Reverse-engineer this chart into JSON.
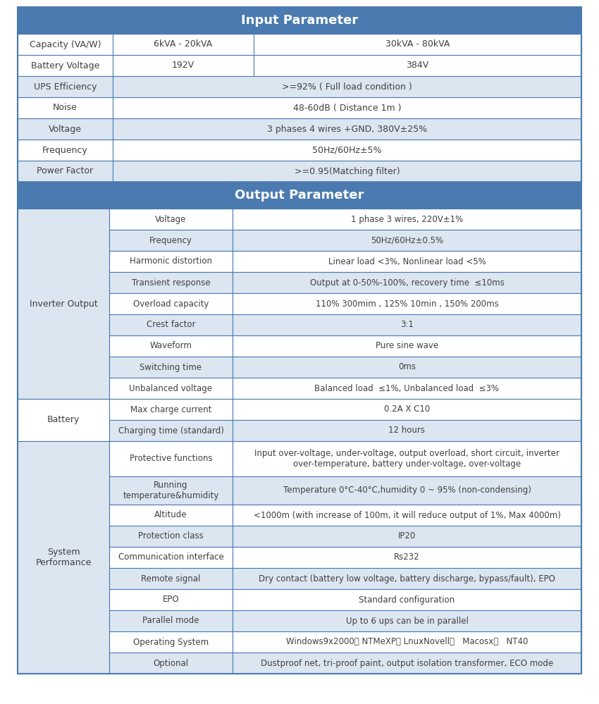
{
  "header_bg": "#4a7aaf",
  "header_text_color": "#ffffff",
  "row_bg_light": "#dce6f1",
  "row_bg_white": "#ffffff",
  "cell_text_color": "#404040",
  "border_color": "#4a7aaf",
  "input_header": "Input Parameter",
  "output_header": "Output Parameter",
  "input_rows": [
    {
      "col1": "Capacity (VA/W)",
      "col2": "6kVA - 20kVA",
      "col3": "30kVA - 80kVA",
      "split": true
    },
    {
      "col1": "Battery Voltage",
      "col2": "192V",
      "col3": "384V",
      "split": true
    },
    {
      "col1": "UPS Efficiency",
      "col2": ">=92% ( Full load condition )",
      "split": false
    },
    {
      "col1": "Noise",
      "col2": "48-60dB ( Distance 1m )",
      "split": false
    },
    {
      "col1": "Voltage",
      "col2": "3 phases 4 wires +GND, 380V±25%",
      "split": false
    },
    {
      "col1": "Frequency",
      "col2": "50Hz/60Hz±5%",
      "split": false
    },
    {
      "col1": "Power Factor",
      "col2": ">=0.95(Matching filter)",
      "split": false
    }
  ],
  "output_sections": [
    {
      "section": "Inverter Output",
      "rows": [
        {
          "col1": "Voltage",
          "col2": "1 phase 3 wires, 220V±1%"
        },
        {
          "col1": "Frequency",
          "col2": "50Hz/60Hz±0.5%"
        },
        {
          "col1": "Harmonic distortion",
          "col2": "Linear load <3%, Nonlinear load <5%"
        },
        {
          "col1": "Transient response",
          "col2": "Output at 0-50%-100%, recovery time  ≤10ms"
        },
        {
          "col1": "Overload capacity",
          "col2": "110% 300mim , 125% 10min , 150% 200ms"
        },
        {
          "col1": "Crest factor",
          "col2": "3:1"
        },
        {
          "col1": "Waveform",
          "col2": "Pure sine wave"
        },
        {
          "col1": "Switching time",
          "col2": "0ms"
        },
        {
          "col1": "Unbalanced voltage",
          "col2": "Balanced load  ≤1%, Unbalanced load  ≤3%"
        }
      ]
    },
    {
      "section": "Battery",
      "rows": [
        {
          "col1": "Max charge current",
          "col2": "0.2A X C10"
        },
        {
          "col1": "Charging time (standard)",
          "col2": "12 hours"
        }
      ]
    },
    {
      "section": "System\nPerformance",
      "rows": [
        {
          "col1": "Protective functions",
          "col2": "Input over-voltage, under-voltage, output overload, short circuit, inverter\nover-temperature, battery under-voltage, over-voltage",
          "tall": true
        },
        {
          "col1": "Running\ntemperature&humidity",
          "col2": "Temperature 0°C-40°C,humidity 0 ~ 95% (non-condensing)",
          "tall2": true
        },
        {
          "col1": "Altitude",
          "col2": "<1000m (with increase of 100m, it will reduce output of 1%, Max 4000m)"
        },
        {
          "col1": "Protection class",
          "col2": "IP20"
        },
        {
          "col1": "Communication interface",
          "col2": "Rs232"
        },
        {
          "col1": "Remote signal",
          "col2": "Dry contact (battery low voltage, battery discharge, bypass/fault), EPO"
        },
        {
          "col1": "EPO",
          "col2": "Standard configuration"
        },
        {
          "col1": "Parallel mode",
          "col2": "Up to 6 ups can be in parallel"
        },
        {
          "col1": "Operating System",
          "col2": "Windows9x2000， NTMeXP、 LnuxNovell、   Macosx、   NT40"
        },
        {
          "col1": "Optional",
          "col2": "Dustproof net, tri-proof paint, output isolation transformer, ECO mode"
        }
      ]
    }
  ]
}
